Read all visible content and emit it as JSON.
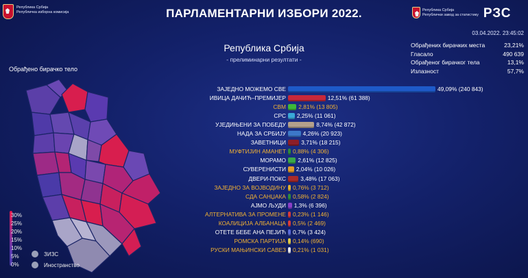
{
  "header": {
    "logo_left_line1": "Република Србија",
    "logo_left_line2": "Републичка изборна комисија",
    "title": "ПАРЛАМЕНТАРНИ ИЗБОРИ 2022.",
    "logo_right_line1": "Република Србија",
    "logo_right_line2": "Републички завод за статистику",
    "logo_right_mark": "РЗС",
    "datetime": "03.04.2022. 23:45:02"
  },
  "main": {
    "subtitle": "Република Србија",
    "subsubtitle": "- прелиминарни резултати -"
  },
  "stats": [
    {
      "label": "Обрађених бирачких места",
      "value": "23,21%"
    },
    {
      "label": "Гласало",
      "value": "490 639"
    },
    {
      "label": "Обрађеног бирачког тела",
      "value": "13,1%"
    },
    {
      "label": "Излазност",
      "value": "57,7%"
    }
  ],
  "map": {
    "label": "Обрађено бирачко тело",
    "scale": [
      "30%",
      "25%",
      "20%",
      "15%",
      "10%",
      "5%",
      "0%"
    ],
    "scale_colors": [
      "#e6194d",
      "#5a3ab0"
    ],
    "legend": [
      "ЗИЗС",
      "Иностранство"
    ]
  },
  "chart_data": {
    "type": "bar",
    "title": "",
    "xlabel": "",
    "ylabel": "",
    "categories": [
      "ЗАЈЕДНО МОЖЕМО СВЕ",
      "ИВИЦА ДАЧИЋ–ПРЕМИЈЕР",
      "СВМ",
      "СРС",
      "УЈЕДИЊЕНИ ЗА ПОБЕДУ",
      "НАДА ЗА СРБИЈУ",
      "ЗАВЕТНИЦИ",
      "МУФТИЈИН АМАНЕТ",
      "МОРАМО",
      "СУВЕРЕНИСТИ",
      "ДВЕРИ-ПОКС",
      "ЗАЈЕДНО ЗА ВОЈВОДИНУ",
      "СДА САНЏАКА",
      "АЈМО ЉУДИ",
      "АЛТЕРНАТИВА ЗА ПРОМЕНЕ",
      "КОАЛИЦИЈА АЛБАНАЦА",
      "ОТЕТЕ БЕБЕ АНА ПЕЈИЋ",
      "РОМСКА ПАРТИЈА",
      "РУСКИ МАЊИНСКИ САВЕЗ"
    ],
    "values": [
      49.09,
      12.51,
      2.81,
      2.25,
      8.74,
      4.26,
      3.71,
      0.88,
      2.61,
      2.04,
      3.48,
      0.76,
      0.58,
      1.3,
      0.23,
      0.5,
      0.7,
      0.14,
      0.21
    ],
    "labels": [
      "49,09% (240 843)",
      "12,51% (61 388)",
      "2,81% (13 805)",
      "2,25% (11 061)",
      "8,74% (42 872)",
      "4,26% (20 923)",
      "3,71% (18 215)",
      "0,88% (4 306)",
      "2,61% (12 825)",
      "2,04% (10 026)",
      "3,48% (17 063)",
      "0,76% (3 712)",
      "0,58% (2 824)",
      "1,3% (6 396)",
      "0,23% (1 146)",
      "0,5% (2 469)",
      "0,7% (3 424)",
      "0,14% (690)",
      "0,21% (1 031)"
    ],
    "colors": [
      "#1e5ac8",
      "#c8283a",
      "#3db83a",
      "#39a8d8",
      "#b4a08c",
      "#3c78c8",
      "#8c1e28",
      "#2d8a3e",
      "#3aa84a",
      "#e09a2a",
      "#a82a2a",
      "#e0b030",
      "#2d8a3e",
      "#8a3ec8",
      "#d83a3a",
      "#d83a3a",
      "#5a6ad8",
      "#dcc84a",
      "#e8e8f0"
    ],
    "minority": [
      false,
      false,
      true,
      false,
      false,
      false,
      false,
      true,
      false,
      false,
      false,
      true,
      true,
      false,
      true,
      true,
      false,
      true,
      true
    ],
    "xlim": [
      0,
      49.09
    ]
  }
}
